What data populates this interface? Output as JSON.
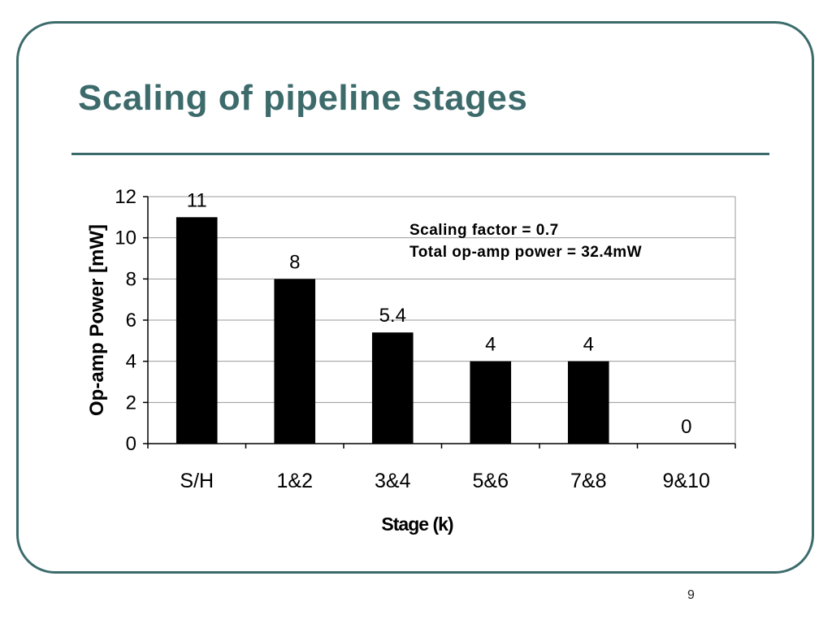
{
  "slide": {
    "title": "Scaling of pipeline stages",
    "page_number": "9"
  },
  "colors": {
    "accent": "#3c6b6c",
    "bar": "#000000",
    "grid": "#999999"
  },
  "chart_data": {
    "type": "bar",
    "categories": [
      "S/H",
      "1&2",
      "3&4",
      "5&6",
      "7&8",
      "9&10"
    ],
    "values": [
      11,
      8,
      5.4,
      4,
      4,
      0
    ],
    "data_labels": [
      "11",
      "8",
      "5.4",
      "4",
      "4",
      "0"
    ],
    "xlabel": "Stage (k)",
    "ylabel": "Op-amp Power [mW]",
    "ylim": [
      0,
      12
    ],
    "yticks": [
      0,
      2,
      4,
      6,
      8,
      10,
      12
    ],
    "grid": true,
    "annotations": [
      "Scaling factor = 0.7",
      "Total op-amp power = 32.4mW"
    ]
  }
}
